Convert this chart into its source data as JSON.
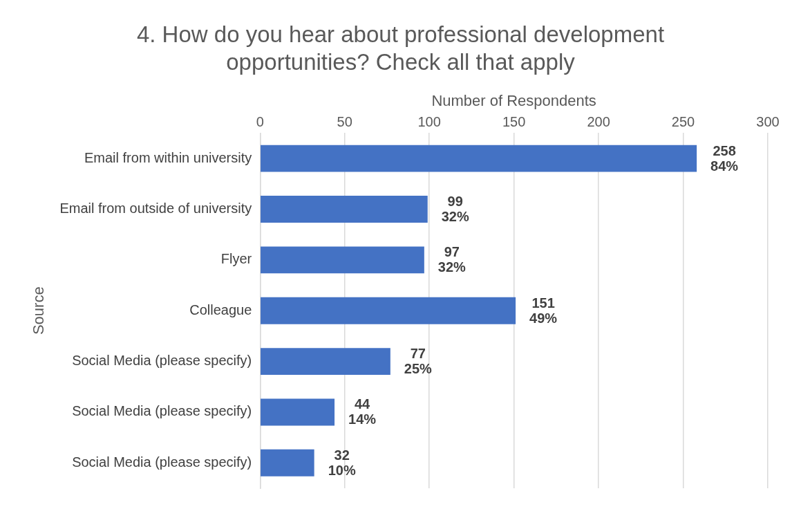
{
  "chart_data": {
    "type": "bar",
    "orientation": "horizontal",
    "title": "4. How do you hear about professional development opportunities? Check all that apply",
    "xlabel": "Number of Respondents",
    "ylabel": "Source",
    "categories": [
      "Email from within university",
      "Email from outside of university",
      "Flyer",
      "Colleague",
      "Social Media (please specify)",
      "Social Media (please specify)",
      "Social Media (please specify)"
    ],
    "values": [
      258,
      99,
      97,
      151,
      77,
      44,
      32
    ],
    "value_labels": [
      "258\n84%",
      "99\n32%",
      "97\n32%",
      "151\n49%",
      "77\n25%",
      "44\n14%",
      "32\n10%"
    ],
    "color": "#4472c4",
    "xlim": [
      0,
      300
    ],
    "xticks": [
      0,
      50,
      100,
      150,
      200,
      250,
      300
    ],
    "grid": "x",
    "legend": false
  }
}
